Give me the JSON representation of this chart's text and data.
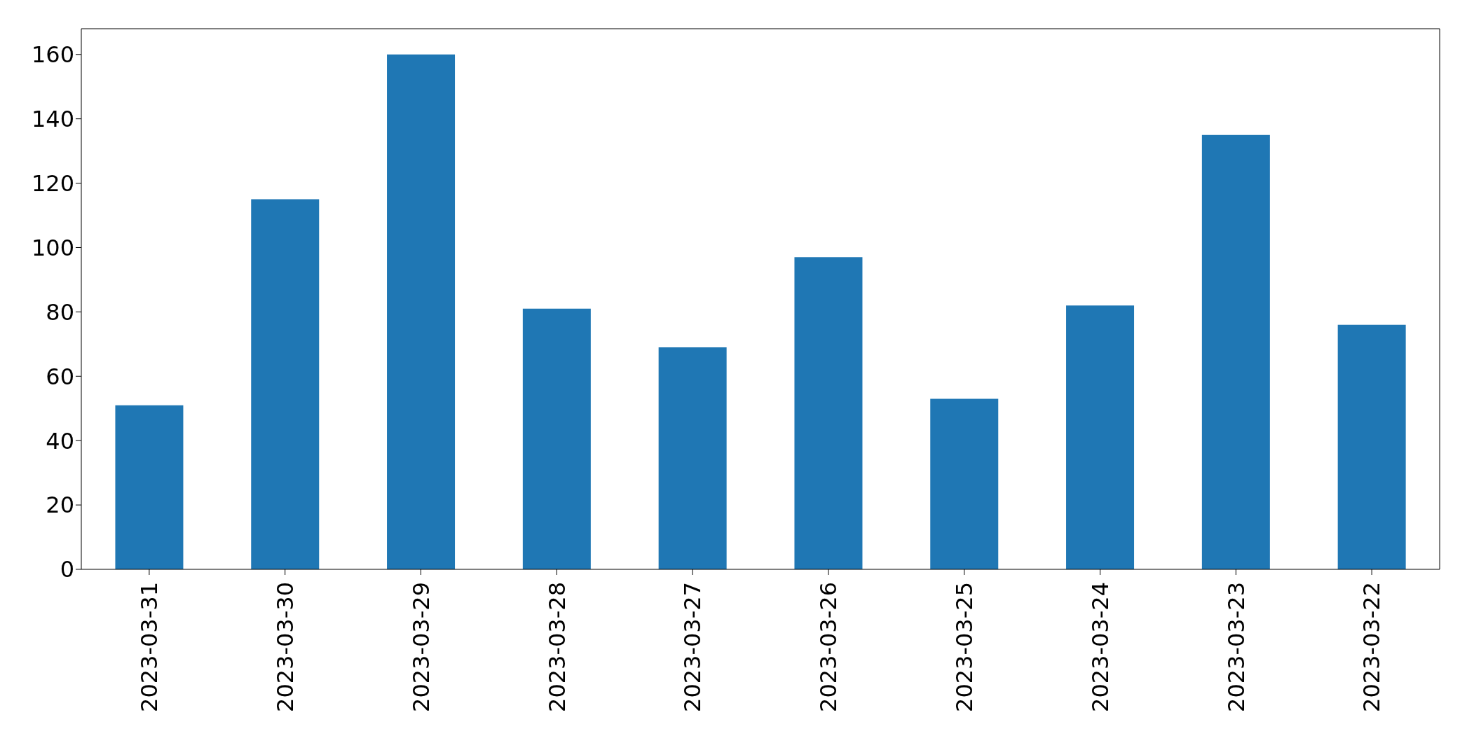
{
  "chart_data": {
    "type": "bar",
    "categories": [
      "2023-03-31",
      "2023-03-30",
      "2023-03-29",
      "2023-03-28",
      "2023-03-27",
      "2023-03-26",
      "2023-03-25",
      "2023-03-24",
      "2023-03-23",
      "2023-03-22"
    ],
    "values": [
      51,
      115,
      160,
      81,
      69,
      97,
      53,
      82,
      135,
      76
    ],
    "color": "#1f77b4",
    "ylim": [
      0,
      168
    ],
    "yticks": [
      0,
      20,
      40,
      60,
      80,
      100,
      120,
      140,
      160
    ],
    "grid": false
  }
}
